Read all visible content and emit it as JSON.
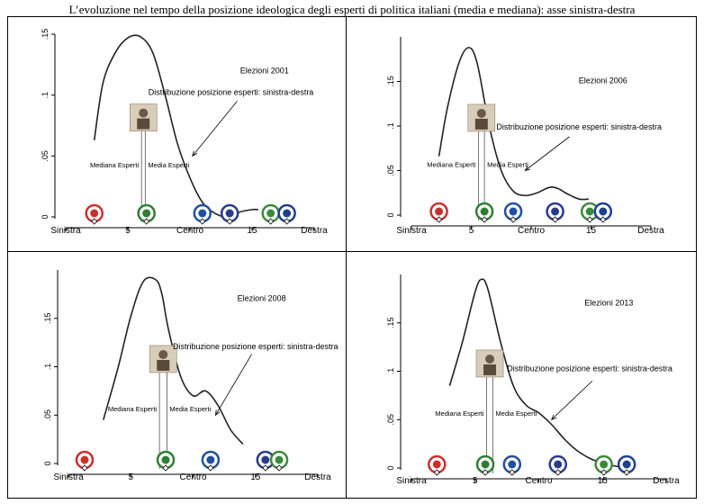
{
  "title": "L’evoluzione nel tempo della posizione ideologica degli esperti di politica italiani (media e mediana): asse sinistra-destra",
  "axis_labels": {
    "left": "Sinistra",
    "center": "Centro",
    "right": "Destra"
  },
  "label_median": "Mediana Esperti",
  "label_mean": "Media Esperti",
  "colors": {
    "curve": "#222222",
    "axis": "#000000"
  },
  "chart_data": [
    {
      "type": "line",
      "title": "Elezioni 2001",
      "annotation": "Distribuzione posizione esperti: sinistra-destra",
      "xlim": [
        0,
        20
      ],
      "ylim": [
        0,
        0.15
      ],
      "xticks": [
        5,
        15
      ],
      "yticks": [
        0,
        0.05,
        0.1,
        0.15
      ],
      "ytick_labels": [
        "0",
        ".05",
        ".1",
        ".15"
      ],
      "x": [
        2.3,
        3,
        4,
        5,
        6,
        7,
        8,
        9,
        10,
        11,
        12,
        13,
        14,
        15,
        15.5
      ],
      "y": [
        0.063,
        0.11,
        0.135,
        0.147,
        0.148,
        0.135,
        0.1,
        0.06,
        0.032,
        0.012,
        0.003,
        0.0,
        0.004,
        0.006,
        0.006
      ],
      "median": 6.1,
      "mean": 6.4,
      "party_positions": [
        2.3,
        6.5,
        11.0,
        13.2,
        16.5,
        17.8
      ],
      "arrow_to": [
        10.2,
        0.05
      ],
      "arrow_from": [
        13.8,
        0.095
      ],
      "arrow_label_at": [
        13.3,
        0.1
      ],
      "year_at": [
        16.0,
        0.118
      ]
    },
    {
      "type": "line",
      "title": "Elezioni 2006",
      "annotation": "Distribuzione posizione esperti: sinistra-destra",
      "xlim": [
        0,
        20
      ],
      "ylim": [
        0,
        0.2
      ],
      "xticks": [
        5,
        15
      ],
      "yticks": [
        0,
        0.05,
        0.1,
        0.15
      ],
      "ytick_labels": [
        "0",
        ".05",
        ".1",
        ".15"
      ],
      "x": [
        2.3,
        3,
        4,
        4.8,
        5.5,
        6.5,
        7.5,
        8.5,
        9.5,
        10.5,
        11.5,
        12.2,
        13,
        14,
        14.8
      ],
      "y": [
        0.066,
        0.12,
        0.172,
        0.188,
        0.17,
        0.1,
        0.05,
        0.027,
        0.022,
        0.025,
        0.031,
        0.03,
        0.024,
        0.018,
        0.018
      ],
      "median": 5.6,
      "mean": 6.1,
      "party_positions": [
        2.3,
        6.1,
        8.5,
        12.0,
        14.9,
        16.0
      ],
      "arrow_to": [
        9.5,
        0.05
      ],
      "arrow_from": [
        13.2,
        0.088
      ],
      "arrow_label_at": [
        14.0,
        0.096
      ],
      "year_at": [
        16.0,
        0.148
      ]
    },
    {
      "type": "line",
      "title": "Elezioni 2008",
      "annotation": "Distribuzione posizione esperti: sinistra-destra",
      "xlim": [
        0,
        20
      ],
      "ylim": [
        0,
        0.2
      ],
      "xticks": [
        5,
        15
      ],
      "yticks": [
        0,
        0.05,
        0.1,
        0.15
      ],
      "ytick_labels": [
        "0",
        ".05",
        ".1",
        ".15"
      ],
      "x": [
        2.8,
        4,
        5,
        6,
        7,
        7.5,
        8,
        9,
        10,
        11,
        12,
        13,
        14
      ],
      "y": [
        0.045,
        0.1,
        0.152,
        0.188,
        0.19,
        0.175,
        0.14,
        0.09,
        0.07,
        0.075,
        0.06,
        0.035,
        0.02
      ],
      "median": 7.3,
      "mean": 7.9,
      "party_positions": [
        1.3,
        7.8,
        11.4,
        15.8,
        16.9
      ],
      "arrow_to": [
        11.8,
        0.05
      ],
      "arrow_from": [
        14.7,
        0.113
      ],
      "arrow_label_at": [
        15.0,
        0.118
      ],
      "year_at": [
        15.5,
        0.168
      ]
    },
    {
      "type": "line",
      "title": "Elezioni 2013",
      "annotation": "Distribuzione posizione esperti: sinistra-destra",
      "xlim": [
        0,
        20
      ],
      "ylim": [
        0,
        0.2
      ],
      "xticks": [
        5,
        15
      ],
      "yticks": [
        0,
        0.05,
        0.1,
        0.15
      ],
      "ytick_labels": [
        "0",
        ".05",
        ".1",
        ".15"
      ],
      "x": [
        3,
        4,
        5,
        5.5,
        6,
        7,
        8,
        9,
        10,
        11,
        12,
        13,
        14,
        15,
        16,
        17
      ],
      "y": [
        0.085,
        0.13,
        0.182,
        0.195,
        0.185,
        0.13,
        0.085,
        0.065,
        0.057,
        0.045,
        0.03,
        0.018,
        0.01,
        0.005,
        0.002,
        0.0
      ],
      "median": 5.9,
      "mean": 6.4,
      "party_positions": [
        2.0,
        5.8,
        7.9,
        11.5,
        15.1,
        16.9
      ],
      "arrow_to": [
        11.0,
        0.05
      ],
      "arrow_from": [
        14.2,
        0.09
      ],
      "arrow_label_at": [
        14.0,
        0.1
      ],
      "year_at": [
        15.5,
        0.168
      ]
    }
  ]
}
